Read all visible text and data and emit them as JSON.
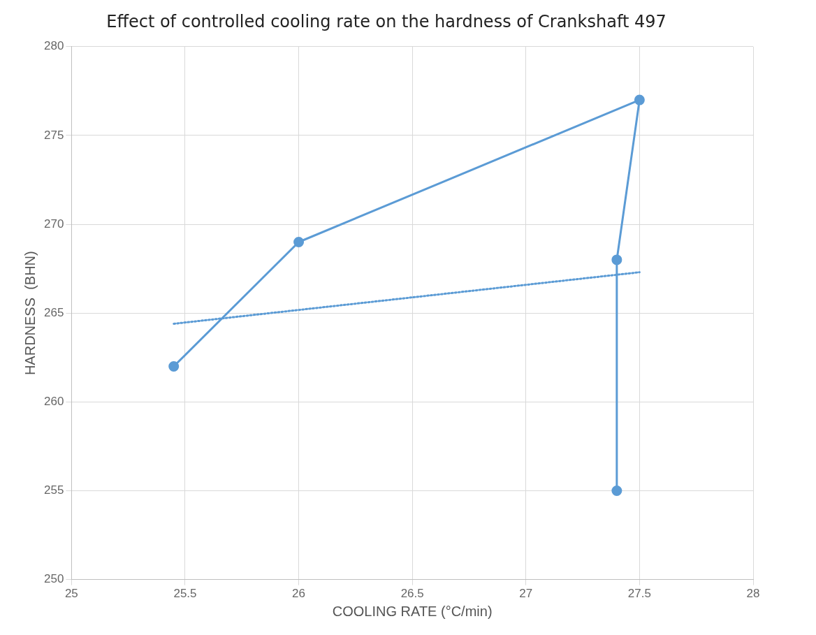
{
  "chart_data": {
    "type": "line",
    "title": "Effect of controlled cooling rate on the hardness of Crankshaft 497",
    "xlabel": "COOLING RATE (°C/min)",
    "ylabel": "HARDNESS  (BHN)",
    "xlim": [
      25,
      28
    ],
    "xticks": [
      25,
      25.5,
      26,
      26.5,
      27,
      27.5,
      28
    ],
    "ylim": [
      250,
      280
    ],
    "yticks": [
      250,
      255,
      260,
      265,
      270,
      275,
      280
    ],
    "grid": true,
    "legend": false,
    "series": [
      {
        "color": "#5b9bd5",
        "marker": "circle",
        "line_style": "solid",
        "x": [
          25.45,
          26.0,
          27.5,
          27.4,
          27.4
        ],
        "values": [
          262,
          269,
          277,
          268,
          255
        ]
      },
      {
        "color": "#5b9bd5",
        "marker": "none",
        "line_style": "dotted",
        "x": [
          25.45,
          27.5
        ],
        "values": [
          264.4,
          267.3
        ]
      }
    ]
  }
}
